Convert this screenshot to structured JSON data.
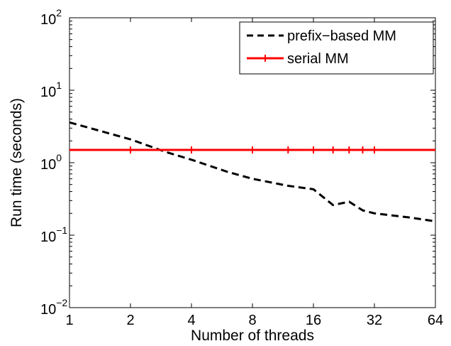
{
  "chart_data": {
    "type": "line",
    "xlabel": "Number of threads",
    "ylabel": "Run time (seconds)",
    "x_scale": "log2",
    "y_scale": "log10",
    "xlim": [
      1,
      64
    ],
    "ylim": [
      0.01,
      100
    ],
    "x_ticks": [
      1,
      2,
      4,
      8,
      16,
      32,
      64
    ],
    "x_tick_labels": [
      "1",
      "2",
      "4",
      "8",
      "16",
      "32",
      "64"
    ],
    "y_ticks": [
      {
        "value": 0.01,
        "base": "10",
        "exp": "−2"
      },
      {
        "value": 0.1,
        "base": "10",
        "exp": "−1"
      },
      {
        "value": 1,
        "base": "10",
        "exp": "0"
      },
      {
        "value": 10,
        "base": "10",
        "exp": "1"
      },
      {
        "value": 100,
        "base": "10",
        "exp": "2"
      }
    ],
    "grid": false,
    "legend_position": "top-right",
    "series": [
      {
        "name": "prefix−based MM",
        "color": "#000000",
        "style": "dashed",
        "points": [
          [
            1,
            3.6
          ],
          [
            2,
            2.1
          ],
          [
            3,
            1.4
          ],
          [
            4,
            1.1
          ],
          [
            6,
            0.75
          ],
          [
            8,
            0.6
          ],
          [
            12,
            0.48
          ],
          [
            16,
            0.43
          ],
          [
            20,
            0.26
          ],
          [
            24,
            0.29
          ],
          [
            28,
            0.22
          ],
          [
            32,
            0.2
          ],
          [
            48,
            0.175
          ],
          [
            64,
            0.155
          ]
        ]
      },
      {
        "name": "serial MM",
        "color": "#ff0000",
        "style": "solid-plus-markers",
        "points": [
          [
            1,
            1.5
          ],
          [
            2,
            1.5
          ],
          [
            4,
            1.5
          ],
          [
            8,
            1.5
          ],
          [
            12,
            1.5
          ],
          [
            16,
            1.5
          ],
          [
            20,
            1.5
          ],
          [
            24,
            1.5
          ],
          [
            28,
            1.5
          ],
          [
            32,
            1.5
          ],
          [
            64,
            1.5
          ]
        ],
        "marker_x": [
          2,
          4,
          8,
          12,
          16,
          20,
          24,
          28,
          32
        ]
      }
    ]
  }
}
